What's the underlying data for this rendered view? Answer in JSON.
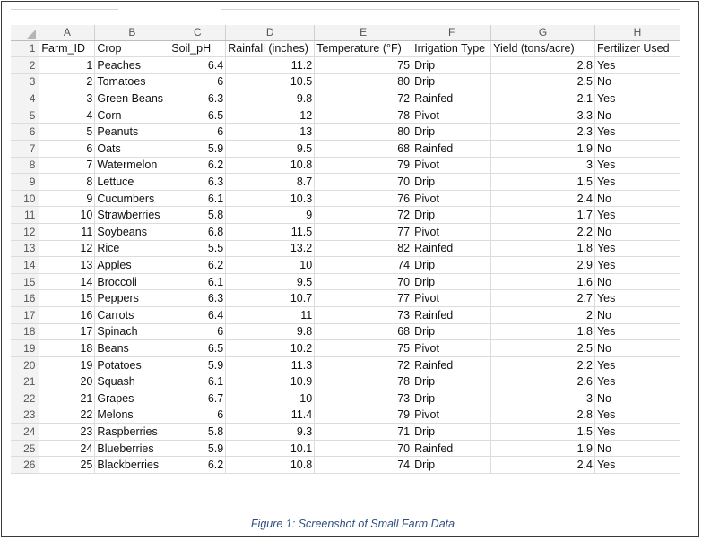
{
  "columns": [
    "A",
    "B",
    "C",
    "D",
    "E",
    "F",
    "G",
    "H"
  ],
  "rows": [
    {
      "n": "1",
      "cells": [
        "Farm_ID",
        "Crop",
        "Soil_pH",
        "Rainfall (inches)",
        "Temperature (°F)",
        "Irrigation Type",
        "Yield (tons/acre)",
        "Fertilizer Used"
      ]
    },
    {
      "n": "2",
      "cells": [
        "1",
        "Peaches",
        "6.4",
        "11.2",
        "75",
        "Drip",
        "2.8",
        "Yes"
      ]
    },
    {
      "n": "3",
      "cells": [
        "2",
        "Tomatoes",
        "6",
        "10.5",
        "80",
        "Drip",
        "2.5",
        "No"
      ]
    },
    {
      "n": "4",
      "cells": [
        "3",
        "Green Beans",
        "6.3",
        "9.8",
        "72",
        "Rainfed",
        "2.1",
        "Yes"
      ]
    },
    {
      "n": "5",
      "cells": [
        "4",
        "Corn",
        "6.5",
        "12",
        "78",
        "Pivot",
        "3.3",
        "No"
      ]
    },
    {
      "n": "6",
      "cells": [
        "5",
        "Peanuts",
        "6",
        "13",
        "80",
        "Drip",
        "2.3",
        "Yes"
      ]
    },
    {
      "n": "7",
      "cells": [
        "6",
        "Oats",
        "5.9",
        "9.5",
        "68",
        "Rainfed",
        "1.9",
        "No"
      ]
    },
    {
      "n": "8",
      "cells": [
        "7",
        "Watermelon",
        "6.2",
        "10.8",
        "79",
        "Pivot",
        "3",
        "Yes"
      ]
    },
    {
      "n": "9",
      "cells": [
        "8",
        "Lettuce",
        "6.3",
        "8.7",
        "70",
        "Drip",
        "1.5",
        "Yes"
      ]
    },
    {
      "n": "10",
      "cells": [
        "9",
        "Cucumbers",
        "6.1",
        "10.3",
        "76",
        "Pivot",
        "2.4",
        "No"
      ]
    },
    {
      "n": "11",
      "cells": [
        "10",
        "Strawberries",
        "5.8",
        "9",
        "72",
        "Drip",
        "1.7",
        "Yes"
      ]
    },
    {
      "n": "12",
      "cells": [
        "11",
        "Soybeans",
        "6.8",
        "11.5",
        "77",
        "Pivot",
        "2.2",
        "No"
      ]
    },
    {
      "n": "13",
      "cells": [
        "12",
        "Rice",
        "5.5",
        "13.2",
        "82",
        "Rainfed",
        "1.8",
        "Yes"
      ]
    },
    {
      "n": "14",
      "cells": [
        "13",
        "Apples",
        "6.2",
        "10",
        "74",
        "Drip",
        "2.9",
        "Yes"
      ]
    },
    {
      "n": "15",
      "cells": [
        "14",
        "Broccoli",
        "6.1",
        "9.5",
        "70",
        "Drip",
        "1.6",
        "No"
      ]
    },
    {
      "n": "16",
      "cells": [
        "15",
        "Peppers",
        "6.3",
        "10.7",
        "77",
        "Pivot",
        "2.7",
        "Yes"
      ]
    },
    {
      "n": "17",
      "cells": [
        "16",
        "Carrots",
        "6.4",
        "11",
        "73",
        "Rainfed",
        "2",
        "No"
      ]
    },
    {
      "n": "18",
      "cells": [
        "17",
        "Spinach",
        "6",
        "9.8",
        "68",
        "Drip",
        "1.8",
        "Yes"
      ]
    },
    {
      "n": "19",
      "cells": [
        "18",
        "Beans",
        "6.5",
        "10.2",
        "75",
        "Pivot",
        "2.5",
        "No"
      ]
    },
    {
      "n": "20",
      "cells": [
        "19",
        "Potatoes",
        "5.9",
        "11.3",
        "72",
        "Rainfed",
        "2.2",
        "Yes"
      ]
    },
    {
      "n": "21",
      "cells": [
        "20",
        "Squash",
        "6.1",
        "10.9",
        "78",
        "Drip",
        "2.6",
        "Yes"
      ]
    },
    {
      "n": "22",
      "cells": [
        "21",
        "Grapes",
        "6.7",
        "10",
        "73",
        "Drip",
        "3",
        "No"
      ]
    },
    {
      "n": "23",
      "cells": [
        "22",
        "Melons",
        "6",
        "11.4",
        "79",
        "Pivot",
        "2.8",
        "Yes"
      ]
    },
    {
      "n": "24",
      "cells": [
        "23",
        "Raspberries",
        "5.8",
        "9.3",
        "71",
        "Drip",
        "1.5",
        "Yes"
      ]
    },
    {
      "n": "25",
      "cells": [
        "24",
        "Blueberries",
        "5.9",
        "10.1",
        "70",
        "Rainfed",
        "1.9",
        "No"
      ]
    },
    {
      "n": "26",
      "cells": [
        "25",
        "Blackberries",
        "6.2",
        "10.8",
        "74",
        "Drip",
        "2.4",
        "Yes"
      ]
    }
  ],
  "caption": "Figure 1: Screenshot of Small Farm Data"
}
